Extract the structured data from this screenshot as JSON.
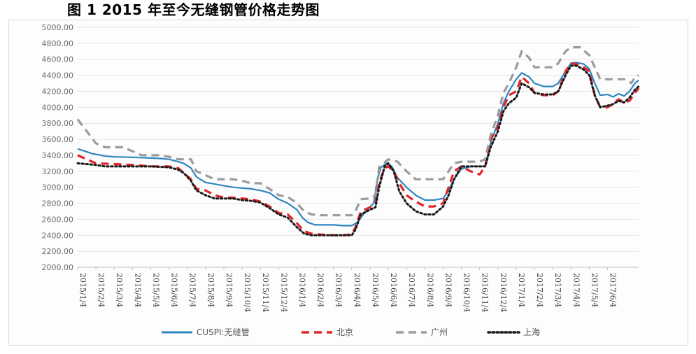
{
  "figure": {
    "title": "图 1 2015 年至今无缝钢管价格走势图"
  },
  "chart_data": {
    "type": "line",
    "title": "",
    "xlabel": "",
    "ylabel": "",
    "ylim": [
      2000,
      5000
    ],
    "ytick_step": 200,
    "y_tick_labels": [
      "2000.00",
      "2200.00",
      "2400.00",
      "2600.00",
      "2800.00",
      "3000.00",
      "3200.00",
      "3400.00",
      "3600.00",
      "3800.00",
      "4000.00",
      "4200.00",
      "4400.00",
      "4600.00",
      "4800.00",
      "5000.00"
    ],
    "x_tick_labels": [
      "2015/1/4",
      "2015/2/4",
      "2015/3/4",
      "2015/4/4",
      "2015/5/4",
      "2015/6/4",
      "2015/7/4",
      "2015/8/4",
      "2015/9/4",
      "2015/10/4",
      "2015/11/4",
      "2015/12/4",
      "2016/1/4",
      "2016/2/4",
      "2016/3/4",
      "2016/4/4",
      "2016/5/4",
      "2016/6/4",
      "2016/7/4",
      "2016/8/4",
      "2016/9/4",
      "2016/10/4",
      "2016/11/4",
      "2016/12/4",
      "2017/1/4",
      "2017/2/4",
      "2017/3/4",
      "2017/4/4",
      "2017/5/4",
      "2017/6/4"
    ],
    "x_range_months": [
      0,
      30.7
    ],
    "grid": "horizontal",
    "legend_position": "bottom",
    "series": [
      {
        "name": "CUSPI:无缝管",
        "color": "#2e86c1",
        "style": "solid",
        "points": [
          [
            0,
            3480
          ],
          [
            0.8,
            3420
          ],
          [
            1.5,
            3390
          ],
          [
            2,
            3380
          ],
          [
            3,
            3375
          ],
          [
            4,
            3365
          ],
          [
            4.5,
            3360
          ],
          [
            5,
            3350
          ],
          [
            5.5,
            3320
          ],
          [
            5.8,
            3300
          ],
          [
            6.2,
            3240
          ],
          [
            6.5,
            3130
          ],
          [
            7,
            3060
          ],
          [
            7.5,
            3040
          ],
          [
            8,
            3020
          ],
          [
            8.5,
            3000
          ],
          [
            9,
            2990
          ],
          [
            9.5,
            2980
          ],
          [
            10,
            2960
          ],
          [
            10.5,
            2930
          ],
          [
            11,
            2850
          ],
          [
            11.5,
            2800
          ],
          [
            12,
            2720
          ],
          [
            12.3,
            2620
          ],
          [
            12.6,
            2560
          ],
          [
            13,
            2530
          ],
          [
            13.5,
            2530
          ],
          [
            14,
            2530
          ],
          [
            14.5,
            2520
          ],
          [
            15,
            2520
          ],
          [
            15.3,
            2560
          ],
          [
            15.6,
            2650
          ],
          [
            15.9,
            2730
          ],
          [
            16.2,
            2800
          ],
          [
            16.4,
            3100
          ],
          [
            16.6,
            3250
          ],
          [
            16.9,
            3300
          ],
          [
            17.2,
            3260
          ],
          [
            17.5,
            3120
          ],
          [
            18,
            3000
          ],
          [
            18.5,
            2900
          ],
          [
            19,
            2840
          ],
          [
            19.5,
            2840
          ],
          [
            20,
            2860
          ],
          [
            20.3,
            2960
          ],
          [
            20.6,
            3100
          ],
          [
            21,
            3230
          ],
          [
            21.5,
            3260
          ],
          [
            22,
            3260
          ],
          [
            22.3,
            3260
          ],
          [
            22.6,
            3560
          ],
          [
            23,
            3800
          ],
          [
            23.3,
            4050
          ],
          [
            23.6,
            4200
          ],
          [
            24,
            4350
          ],
          [
            24.3,
            4430
          ],
          [
            24.7,
            4380
          ],
          [
            25,
            4300
          ],
          [
            25.5,
            4260
          ],
          [
            26,
            4260
          ],
          [
            26.3,
            4300
          ],
          [
            26.7,
            4450
          ],
          [
            27,
            4550
          ],
          [
            27.3,
            4560
          ],
          [
            27.7,
            4540
          ],
          [
            28,
            4480
          ],
          [
            28.3,
            4300
          ],
          [
            28.6,
            4150
          ],
          [
            29,
            4160
          ],
          [
            29.3,
            4130
          ],
          [
            29.6,
            4170
          ],
          [
            29.9,
            4140
          ],
          [
            30.2,
            4200
          ],
          [
            30.5,
            4300
          ],
          [
            30.7,
            4340
          ]
        ]
      },
      {
        "name": "北京",
        "color": "#e0242a",
        "style": "dash",
        "points": [
          [
            0,
            3400
          ],
          [
            0.5,
            3350
          ],
          [
            1,
            3300
          ],
          [
            2,
            3290
          ],
          [
            3,
            3280
          ],
          [
            4,
            3260
          ],
          [
            5,
            3260
          ],
          [
            5.5,
            3240
          ],
          [
            5.8,
            3180
          ],
          [
            6.2,
            3100
          ],
          [
            6.5,
            2980
          ],
          [
            7,
            2960
          ],
          [
            7.5,
            2900
          ],
          [
            8,
            2870
          ],
          [
            8.5,
            2870
          ],
          [
            9,
            2860
          ],
          [
            9.5,
            2850
          ],
          [
            10,
            2820
          ],
          [
            10.5,
            2760
          ],
          [
            11,
            2680
          ],
          [
            11.5,
            2660
          ],
          [
            12,
            2550
          ],
          [
            12.4,
            2450
          ],
          [
            12.8,
            2420
          ],
          [
            13.2,
            2410
          ],
          [
            14,
            2400
          ],
          [
            14.5,
            2400
          ],
          [
            15,
            2410
          ],
          [
            15.2,
            2500
          ],
          [
            15.5,
            2700
          ],
          [
            16,
            2750
          ],
          [
            16.3,
            2800
          ],
          [
            16.5,
            3060
          ],
          [
            16.8,
            3240
          ],
          [
            17,
            3260
          ],
          [
            17.3,
            3200
          ],
          [
            17.6,
            3050
          ],
          [
            18,
            2900
          ],
          [
            18.5,
            2820
          ],
          [
            19,
            2760
          ],
          [
            19.5,
            2760
          ],
          [
            20,
            2800
          ],
          [
            20.3,
            3000
          ],
          [
            20.6,
            3200
          ],
          [
            21,
            3260
          ],
          [
            21.5,
            3200
          ],
          [
            22,
            3160
          ],
          [
            22.3,
            3260
          ],
          [
            22.6,
            3600
          ],
          [
            23,
            3750
          ],
          [
            23.3,
            4000
          ],
          [
            23.6,
            4150
          ],
          [
            24,
            4200
          ],
          [
            24.3,
            4380
          ],
          [
            24.7,
            4300
          ],
          [
            25,
            4180
          ],
          [
            25.5,
            4150
          ],
          [
            26,
            4150
          ],
          [
            26.3,
            4200
          ],
          [
            26.7,
            4450
          ],
          [
            27,
            4550
          ],
          [
            27.3,
            4540
          ],
          [
            27.7,
            4500
          ],
          [
            28,
            4450
          ],
          [
            28.3,
            4150
          ],
          [
            28.6,
            4000
          ],
          [
            29,
            4000
          ],
          [
            29.3,
            4040
          ],
          [
            29.6,
            4100
          ],
          [
            29.9,
            4060
          ],
          [
            30.2,
            4080
          ],
          [
            30.5,
            4180
          ],
          [
            30.7,
            4240
          ]
        ]
      },
      {
        "name": "广州",
        "color": "#9b9b9b",
        "style": "dash",
        "points": [
          [
            0,
            3850
          ],
          [
            0.5,
            3700
          ],
          [
            1,
            3550
          ],
          [
            1.5,
            3500
          ],
          [
            2.5,
            3500
          ],
          [
            3,
            3450
          ],
          [
            3.5,
            3400
          ],
          [
            4.5,
            3400
          ],
          [
            5,
            3380
          ],
          [
            5.5,
            3350
          ],
          [
            6.2,
            3350
          ],
          [
            6.5,
            3200
          ],
          [
            7,
            3150
          ],
          [
            7.5,
            3100
          ],
          [
            8.5,
            3100
          ],
          [
            9,
            3080
          ],
          [
            9.5,
            3050
          ],
          [
            10,
            3050
          ],
          [
            10.5,
            2980
          ],
          [
            11,
            2900
          ],
          [
            11.5,
            2880
          ],
          [
            12,
            2800
          ],
          [
            12.4,
            2700
          ],
          [
            12.8,
            2660
          ],
          [
            13.2,
            2650
          ],
          [
            14,
            2650
          ],
          [
            15,
            2650
          ],
          [
            15.2,
            2700
          ],
          [
            15.5,
            2850
          ],
          [
            16,
            2860
          ],
          [
            16.3,
            2900
          ],
          [
            16.5,
            3250
          ],
          [
            17,
            3350
          ],
          [
            17.5,
            3320
          ],
          [
            18,
            3200
          ],
          [
            18.5,
            3100
          ],
          [
            19,
            3100
          ],
          [
            19.5,
            3100
          ],
          [
            20,
            3100
          ],
          [
            20.3,
            3200
          ],
          [
            20.6,
            3300
          ],
          [
            21,
            3320
          ],
          [
            21.5,
            3320
          ],
          [
            22,
            3320
          ],
          [
            22.3,
            3350
          ],
          [
            22.6,
            3650
          ],
          [
            23,
            3900
          ],
          [
            23.3,
            4180
          ],
          [
            23.6,
            4300
          ],
          [
            24,
            4500
          ],
          [
            24.3,
            4700
          ],
          [
            24.7,
            4620
          ],
          [
            25,
            4500
          ],
          [
            25.5,
            4500
          ],
          [
            26,
            4500
          ],
          [
            26.3,
            4550
          ],
          [
            26.7,
            4700
          ],
          [
            27,
            4750
          ],
          [
            27.5,
            4750
          ],
          [
            28,
            4650
          ],
          [
            28.3,
            4500
          ],
          [
            28.6,
            4350
          ],
          [
            29,
            4350
          ],
          [
            29.5,
            4350
          ],
          [
            30,
            4350
          ],
          [
            30.3,
            4300
          ],
          [
            30.5,
            4380
          ],
          [
            30.7,
            4400
          ]
        ]
      },
      {
        "name": "上海",
        "color": "#1a1a1a",
        "style": "dot",
        "points": [
          [
            0,
            3300
          ],
          [
            1,
            3280
          ],
          [
            1.5,
            3260
          ],
          [
            2.5,
            3260
          ],
          [
            3,
            3260
          ],
          [
            4,
            3260
          ],
          [
            5,
            3250
          ],
          [
            5.5,
            3220
          ],
          [
            5.8,
            3180
          ],
          [
            6.2,
            3080
          ],
          [
            6.5,
            2960
          ],
          [
            7,
            2900
          ],
          [
            7.5,
            2860
          ],
          [
            8.5,
            2860
          ],
          [
            9,
            2840
          ],
          [
            9.5,
            2830
          ],
          [
            10,
            2810
          ],
          [
            10.5,
            2740
          ],
          [
            11,
            2660
          ],
          [
            11.5,
            2620
          ],
          [
            12,
            2500
          ],
          [
            12.4,
            2420
          ],
          [
            12.8,
            2400
          ],
          [
            13.2,
            2400
          ],
          [
            14,
            2400
          ],
          [
            15,
            2400
          ],
          [
            15.2,
            2470
          ],
          [
            15.5,
            2660
          ],
          [
            16,
            2720
          ],
          [
            16.3,
            2750
          ],
          [
            16.5,
            3000
          ],
          [
            16.8,
            3260
          ],
          [
            17,
            3300
          ],
          [
            17.3,
            3200
          ],
          [
            17.6,
            2950
          ],
          [
            18,
            2800
          ],
          [
            18.5,
            2700
          ],
          [
            19,
            2660
          ],
          [
            19.5,
            2660
          ],
          [
            20,
            2760
          ],
          [
            20.3,
            2900
          ],
          [
            20.6,
            3100
          ],
          [
            21,
            3260
          ],
          [
            21.5,
            3260
          ],
          [
            22,
            3260
          ],
          [
            22.3,
            3260
          ],
          [
            22.6,
            3500
          ],
          [
            23,
            3700
          ],
          [
            23.3,
            3950
          ],
          [
            23.6,
            4050
          ],
          [
            24,
            4120
          ],
          [
            24.3,
            4300
          ],
          [
            24.7,
            4250
          ],
          [
            25,
            4180
          ],
          [
            25.5,
            4160
          ],
          [
            26,
            4160
          ],
          [
            26.3,
            4200
          ],
          [
            26.7,
            4400
          ],
          [
            27,
            4520
          ],
          [
            27.3,
            4520
          ],
          [
            27.7,
            4470
          ],
          [
            28,
            4400
          ],
          [
            28.3,
            4150
          ],
          [
            28.6,
            4000
          ],
          [
            29,
            4020
          ],
          [
            29.3,
            4040
          ],
          [
            29.6,
            4080
          ],
          [
            29.9,
            4060
          ],
          [
            30.2,
            4120
          ],
          [
            30.5,
            4220
          ],
          [
            30.7,
            4260
          ]
        ]
      }
    ]
  }
}
